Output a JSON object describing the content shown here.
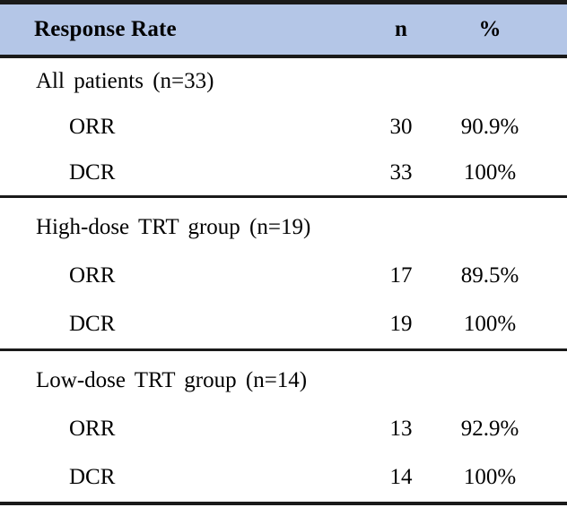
{
  "table": {
    "header": {
      "response_rate": "Response Rate",
      "n": "n",
      "pct": "%"
    },
    "sections": [
      {
        "label": "All patients (n=33)",
        "rows": [
          {
            "label": "ORR",
            "n": "30",
            "pct": "90.9%"
          },
          {
            "label": "DCR",
            "n": "33",
            "pct": "100%"
          }
        ]
      },
      {
        "label": "High-dose TRT group (n=19)",
        "rows": [
          {
            "label": "ORR",
            "n": "17",
            "pct": "89.5%"
          },
          {
            "label": "DCR",
            "n": "19",
            "pct": "100%"
          }
        ]
      },
      {
        "label": "Low-dose TRT group (n=14)",
        "rows": [
          {
            "label": "ORR",
            "n": "13",
            "pct": "92.9%"
          },
          {
            "label": "DCR",
            "n": "14",
            "pct": "100%"
          }
        ]
      }
    ],
    "colors": {
      "header_bg": "#b4c6e7",
      "border": "#1a1a1a"
    }
  }
}
